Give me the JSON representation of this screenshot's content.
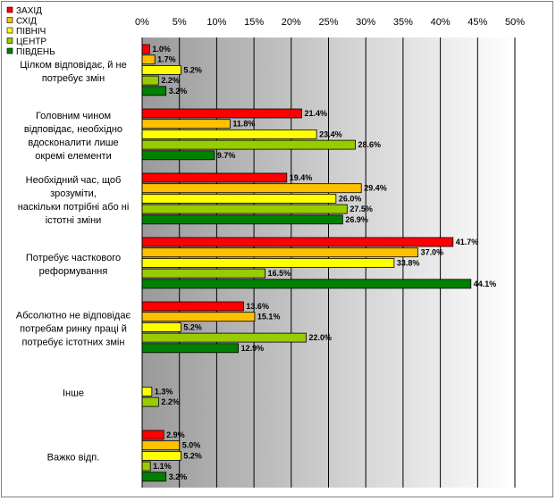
{
  "chart_data": {
    "type": "bar",
    "orientation": "horizontal",
    "x_ticks": [
      "0%",
      "5%",
      "10%",
      "15%",
      "20%",
      "25%",
      "30%",
      "35%",
      "40%",
      "45%",
      "50%"
    ],
    "xlim": [
      0,
      50
    ],
    "grid": true,
    "legend_position": "top-left",
    "categories": [
      [
        "Цілком відповідає, й не",
        "потребує змін"
      ],
      [
        "Головним чином",
        "відповідає, необхідно",
        "вдосконалити лише",
        "окремі елементи"
      ],
      [
        "Необхідний час, щоб",
        "зрозуміти,",
        "наскільки потрібні або ні",
        "істотні зміни"
      ],
      [
        "Потребує часткового",
        "реформування"
      ],
      [
        "Абсолютно не відповідає",
        "потребам ринку праці й",
        "потребує істотних змін"
      ],
      [
        "Інше"
      ],
      [
        "Важко відп."
      ]
    ],
    "series": [
      {
        "name": "ЗАХІД",
        "color": "#ff0000",
        "values": [
          1.0,
          21.4,
          19.4,
          41.7,
          13.6,
          null,
          2.9
        ]
      },
      {
        "name": "СХІД",
        "color": "#ffc000",
        "values": [
          1.7,
          11.8,
          29.4,
          37.0,
          15.1,
          null,
          5.0
        ]
      },
      {
        "name": "ПІВНІЧ",
        "color": "#ffff00",
        "values": [
          5.2,
          23.4,
          26.0,
          33.8,
          5.2,
          1.3,
          5.2
        ]
      },
      {
        "name": "ЦЕНТР",
        "color": "#99cc00",
        "values": [
          2.2,
          28.6,
          27.5,
          16.5,
          22.0,
          2.2,
          1.1
        ]
      },
      {
        "name": "ПІВДЕНЬ",
        "color": "#008000",
        "values": [
          3.2,
          9.7,
          26.9,
          44.1,
          12.9,
          null,
          3.2
        ]
      }
    ],
    "data_labels": [
      [
        "1.0%",
        "21.4%",
        "19.4%",
        "41.7%",
        "13.6%",
        "",
        "2.9%"
      ],
      [
        "1.7%",
        "11.8%",
        "29.4%",
        "37.0%",
        "15.1%",
        "",
        "5.0%"
      ],
      [
        "5.2%",
        "23.4%",
        "26.0%",
        "33.8%",
        "5.2%",
        "1.3%",
        "5.2%"
      ],
      [
        "2.2%",
        "28.6%",
        "27.5%",
        "16.5%",
        "22.0%",
        "2.2%",
        "1.1%"
      ],
      [
        "3.2%",
        "9.7%",
        "26.9%",
        "44.1%",
        "12.9%",
        "",
        "3.2%"
      ]
    ]
  }
}
